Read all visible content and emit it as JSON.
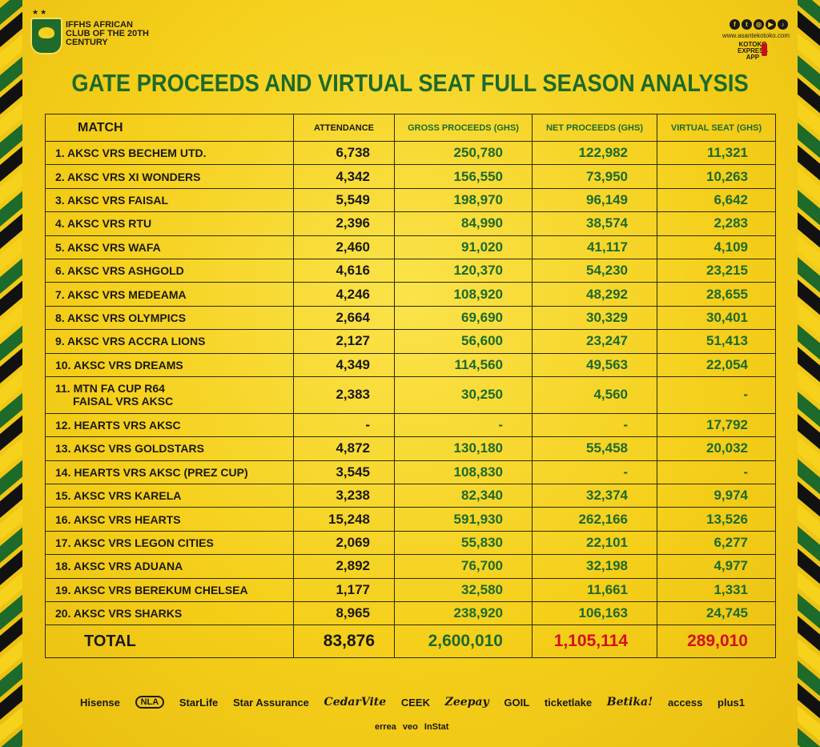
{
  "header": {
    "club_text": "IFFHS AFRICAN CLUB OF THE 20TH CENTURY",
    "stars": "★★",
    "website": "www.asantekotoko.com",
    "app_label": "KOTOKO EXPRESS APP",
    "social": [
      "f",
      "t",
      "◎",
      "▶",
      "♪"
    ]
  },
  "title": "GATE PROCEEDS AND VIRTUAL SEAT FULL SEASON ANALYSIS",
  "table": {
    "headers": {
      "match": "MATCH",
      "attendance": "ATTENDANCE",
      "gross": "GROSS PROCEEDS (GHS)",
      "net": "NET PROCEEDS (GHS)",
      "virtual": "VIRTUAL SEAT (GHS)"
    },
    "rows": [
      {
        "match": "1. AKSC VRS BECHEM UTD.",
        "attendance": "6,738",
        "gross": "250,780",
        "net": "122,982",
        "virtual": "11,321"
      },
      {
        "match": "2. AKSC VRS XI WONDERS",
        "attendance": "4,342",
        "gross": "156,550",
        "net": "73,950",
        "virtual": "10,263"
      },
      {
        "match": "3. AKSC VRS FAISAL",
        "attendance": "5,549",
        "gross": "198,970",
        "net": "96,149",
        "virtual": "6,642"
      },
      {
        "match": "4. AKSC VRS RTU",
        "attendance": "2,396",
        "gross": "84,990",
        "net": "38,574",
        "virtual": "2,283"
      },
      {
        "match": "5. AKSC VRS WAFA",
        "attendance": "2,460",
        "gross": "91,020",
        "net": "41,117",
        "virtual": "4,109"
      },
      {
        "match": "6. AKSC VRS ASHGOLD",
        "attendance": "4,616",
        "gross": "120,370",
        "net": "54,230",
        "virtual": "23,215"
      },
      {
        "match": "7. AKSC VRS MEDEAMA",
        "attendance": "4,246",
        "gross": "108,920",
        "net": "48,292",
        "virtual": "28,655"
      },
      {
        "match": "8. AKSC VRS OLYMPICS",
        "attendance": "2,664",
        "gross": "69,690",
        "net": "30,329",
        "virtual": "30,401"
      },
      {
        "match": "9. AKSC VRS ACCRA LIONS",
        "attendance": "2,127",
        "gross": "56,600",
        "net": "23,247",
        "virtual": "51,413"
      },
      {
        "match": "10. AKSC VRS DREAMS",
        "attendance": "4,349",
        "gross": "114,560",
        "net": "49,563",
        "virtual": "22,054"
      },
      {
        "match": "11. MTN FA CUP R64",
        "match2": "FAISAL VRS AKSC",
        "attendance": "2,383",
        "gross": "30,250",
        "net": "4,560",
        "virtual": "-"
      },
      {
        "match": "12. HEARTS VRS AKSC",
        "attendance": "-",
        "gross": "-",
        "net": "-",
        "virtual": "17,792"
      },
      {
        "match": "13. AKSC VRS GOLDSTARS",
        "attendance": "4,872",
        "gross": "130,180",
        "net": "55,458",
        "virtual": "20,032"
      },
      {
        "match": "14. HEARTS VRS AKSC (PREZ CUP)",
        "attendance": "3,545",
        "gross": "108,830",
        "net": "-",
        "virtual": "-"
      },
      {
        "match": "15. AKSC VRS KARELA",
        "attendance": "3,238",
        "gross": "82,340",
        "net": "32,374",
        "virtual": "9,974"
      },
      {
        "match": "16. AKSC VRS HEARTS",
        "attendance": "15,248",
        "gross": "591,930",
        "net": "262,166",
        "virtual": "13,526"
      },
      {
        "match": "17. AKSC VRS LEGON CITIES",
        "attendance": "2,069",
        "gross": "55,830",
        "net": "22,101",
        "virtual": "6,277"
      },
      {
        "match": "18. AKSC VRS ADUANA",
        "attendance": "2,892",
        "gross": "76,700",
        "net": "32,198",
        "virtual": "4,977"
      },
      {
        "match": "19. AKSC VRS BEREKUM CHELSEA",
        "attendance": "1,177",
        "gross": "32,580",
        "net": "11,661",
        "virtual": "1,331"
      },
      {
        "match": "20. AKSC VRS SHARKS",
        "attendance": "8,965",
        "gross": "238,920",
        "net": "106,163",
        "virtual": "24,745"
      }
    ],
    "total": {
      "label": "TOTAL",
      "attendance": "83,876",
      "gross": "2,600,010",
      "net": "1,105,114",
      "virtual": "289,010"
    }
  },
  "sponsors": [
    "Hisense",
    "NLA",
    "StarLife",
    "Star Assurance",
    "CedarVite",
    "CEEK",
    "Zeepay",
    "GOIL",
    "ticketlake",
    "Betika!",
    "access",
    "plus1"
  ],
  "sponsors_row2": [
    "errea",
    "veo",
    "InStat"
  ],
  "colors": {
    "accent_green": "#1d6a2a",
    "background_yellow": "#f6d21c",
    "total_red": "#d4101a"
  }
}
